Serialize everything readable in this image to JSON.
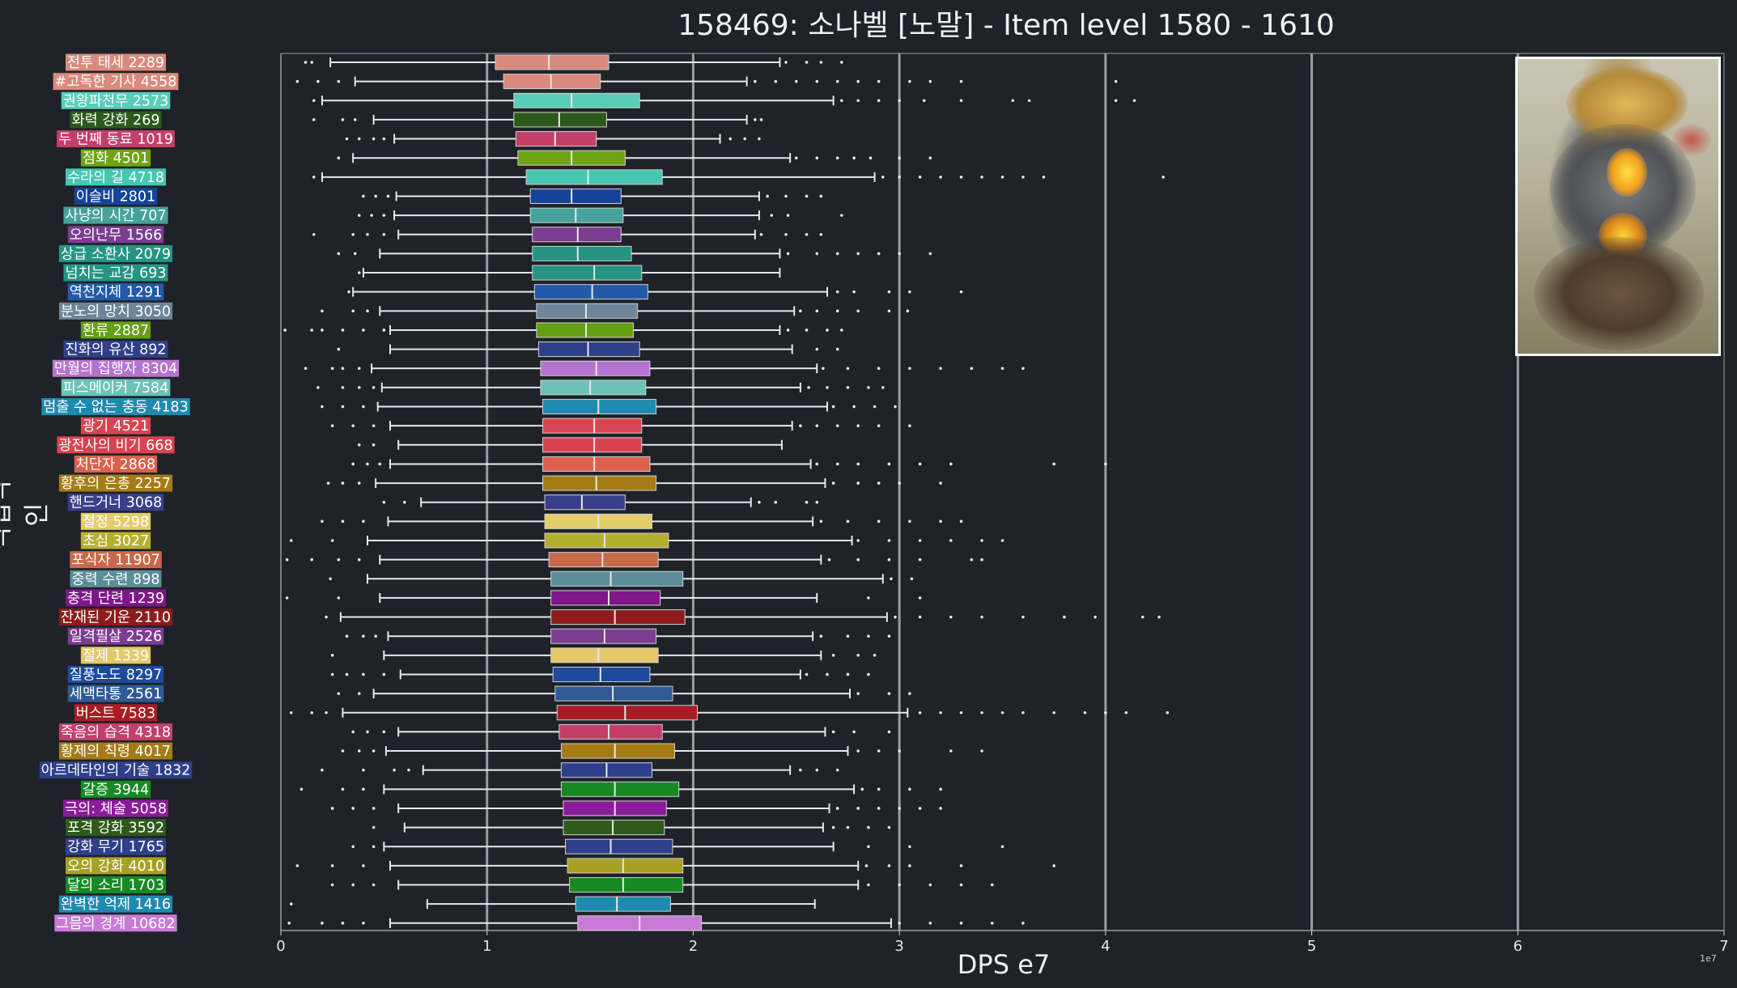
{
  "header": {
    "title": "158469: 소나벨 [노말] - Item level 1580 - 1610"
  },
  "chart_data": {
    "type": "box",
    "orientation": "horizontal",
    "title": "158469: 소나벨 [노말] - Item level 1580 - 1610",
    "xlabel": "DPS e7",
    "ylabel": "직업각인",
    "x_scale_label": "1e7",
    "xlim": [
      0,
      7
    ],
    "xticks": [
      "0",
      "1",
      "2",
      "3",
      "4",
      "5",
      "6",
      "7"
    ],
    "grid": "vertical lines at integer ticks",
    "items": [
      {
        "label": "전투 태세 2289",
        "color": "#d98a7c",
        "whislo": 0.24,
        "q1": 1.04,
        "med": 1.3,
        "q3": 1.59,
        "whishi": 2.42,
        "fliers": [
          0.12,
          0.15,
          2.45,
          2.55,
          2.62,
          2.72
        ]
      },
      {
        "label": "#고독한 기사 4558",
        "color": "#d98a7c",
        "whislo": 0.36,
        "q1": 1.08,
        "med": 1.31,
        "q3": 1.55,
        "whishi": 2.26,
        "fliers": [
          0.08,
          0.18,
          0.28,
          2.3,
          2.4,
          2.5,
          2.6,
          2.7,
          2.8,
          2.9,
          3.05,
          3.15,
          3.3,
          4.05
        ]
      },
      {
        "label": "권왕파천무 2573",
        "color": "#58cdb7",
        "whislo": 0.2,
        "q1": 1.13,
        "med": 1.41,
        "q3": 1.74,
        "whishi": 2.68,
        "fliers": [
          0.16,
          2.72,
          2.8,
          2.9,
          3.0,
          3.12,
          3.3,
          3.55,
          3.63,
          4.05,
          4.14
        ]
      },
      {
        "label": "화력 강화 269",
        "color": "#2c5a1c",
        "whislo": 0.45,
        "q1": 1.13,
        "med": 1.35,
        "q3": 1.58,
        "whishi": 2.26,
        "fliers": [
          0.16,
          0.3,
          0.36,
          2.3,
          2.33
        ]
      },
      {
        "label": "두 번째 동료 1019",
        "color": "#c33f6a",
        "whislo": 0.55,
        "q1": 1.14,
        "med": 1.33,
        "q3": 1.53,
        "whishi": 2.13,
        "fliers": [
          0.32,
          0.38,
          0.45,
          0.5,
          2.18,
          2.25,
          2.32
        ]
      },
      {
        "label": "점화 4501",
        "color": "#6fa414",
        "whislo": 0.35,
        "q1": 1.15,
        "med": 1.41,
        "q3": 1.67,
        "whishi": 2.47,
        "fliers": [
          0.28,
          2.5,
          2.6,
          2.7,
          2.78,
          2.86,
          3.0,
          3.15
        ]
      },
      {
        "label": "수라의 길 4718",
        "color": "#45c7b2",
        "whislo": 0.2,
        "q1": 1.19,
        "med": 1.49,
        "q3": 1.85,
        "whishi": 2.88,
        "fliers": [
          0.16,
          2.92,
          3.0,
          3.1,
          3.2,
          3.3,
          3.4,
          3.5,
          3.6,
          3.7,
          4.28
        ]
      },
      {
        "label": "이슬비 2801",
        "color": "#16439b",
        "whislo": 0.56,
        "q1": 1.21,
        "med": 1.41,
        "q3": 1.65,
        "whishi": 2.32,
        "fliers": [
          0.4,
          0.46,
          0.52,
          2.36,
          2.45,
          2.55,
          2.62
        ]
      },
      {
        "label": "사냥의 시간 707",
        "color": "#46a39b",
        "whislo": 0.55,
        "q1": 1.21,
        "med": 1.43,
        "q3": 1.66,
        "whishi": 2.32,
        "fliers": [
          0.38,
          0.44,
          0.5,
          2.38,
          2.46,
          2.72
        ]
      },
      {
        "label": "오의난무 1566",
        "color": "#7c3d91",
        "whislo": 0.57,
        "q1": 1.22,
        "med": 1.44,
        "q3": 1.65,
        "whishi": 2.3,
        "fliers": [
          0.16,
          0.35,
          0.42,
          0.5,
          2.33,
          2.45,
          2.55,
          2.62
        ]
      },
      {
        "label": "상급 소환사 2079",
        "color": "#269482",
        "whislo": 0.48,
        "q1": 1.22,
        "med": 1.44,
        "q3": 1.7,
        "whishi": 2.42,
        "fliers": [
          0.28,
          0.36,
          2.46,
          2.6,
          2.7,
          2.8,
          2.9,
          3.0,
          3.15
        ]
      },
      {
        "label": "넘치는 교감 693",
        "color": "#269482",
        "whislo": 0.4,
        "q1": 1.22,
        "med": 1.52,
        "q3": 1.75,
        "whishi": 2.42,
        "fliers": [
          0.38
        ]
      },
      {
        "label": "역천지체 1291",
        "color": "#235aa8",
        "whislo": 0.35,
        "q1": 1.23,
        "med": 1.51,
        "q3": 1.78,
        "whishi": 2.65,
        "fliers": [
          0.33,
          2.7,
          2.78,
          2.95,
          3.05,
          3.3
        ]
      },
      {
        "label": "분노의 망치 3050",
        "color": "#6d8499",
        "whislo": 0.48,
        "q1": 1.24,
        "med": 1.48,
        "q3": 1.73,
        "whishi": 2.49,
        "fliers": [
          0.2,
          0.35,
          0.42,
          2.52,
          2.6,
          2.7,
          2.8,
          2.95,
          3.04
        ]
      },
      {
        "label": "환류 2887",
        "color": "#62a014",
        "whislo": 0.53,
        "q1": 1.24,
        "med": 1.48,
        "q3": 1.71,
        "whishi": 2.42,
        "fliers": [
          0.02,
          0.15,
          0.2,
          0.3,
          0.4,
          0.5,
          2.46,
          2.55,
          2.65,
          2.72
        ]
      },
      {
        "label": "진화의 유산 892",
        "color": "#2f3f89",
        "whislo": 0.53,
        "q1": 1.25,
        "med": 1.49,
        "q3": 1.74,
        "whishi": 2.48,
        "fliers": [
          0.28,
          2.6,
          2.7
        ]
      },
      {
        "label": "만월의 집행자 8304",
        "color": "#b573cf",
        "whislo": 0.44,
        "q1": 1.26,
        "med": 1.53,
        "q3": 1.79,
        "whishi": 2.6,
        "fliers": [
          0.12,
          0.25,
          0.3,
          0.38,
          2.63,
          2.75,
          2.9,
          3.05,
          3.2,
          3.35,
          3.5,
          3.6
        ]
      },
      {
        "label": "피스메이커 7584",
        "color": "#6cc2b6",
        "whislo": 0.49,
        "q1": 1.26,
        "med": 1.5,
        "q3": 1.77,
        "whishi": 2.52,
        "fliers": [
          0.18,
          0.3,
          0.38,
          0.45,
          2.56,
          2.65,
          2.75,
          2.85,
          2.92
        ]
      },
      {
        "label": "멈출 수 없는 충동 4183",
        "color": "#1f8ab0",
        "whislo": 0.47,
        "q1": 1.27,
        "med": 1.54,
        "q3": 1.82,
        "whishi": 2.65,
        "fliers": [
          0.2,
          0.3,
          0.4,
          2.68,
          2.78,
          2.88,
          2.98
        ]
      },
      {
        "label": "광기 4521",
        "color": "#d94452",
        "whislo": 0.53,
        "q1": 1.27,
        "med": 1.52,
        "q3": 1.75,
        "whishi": 2.48,
        "fliers": [
          0.25,
          0.35,
          0.45,
          2.52,
          2.6,
          2.7,
          2.8,
          2.9,
          3.05
        ]
      },
      {
        "label": "광전사의 비기 668",
        "color": "#d9434f",
        "whislo": 0.57,
        "q1": 1.27,
        "med": 1.52,
        "q3": 1.75,
        "whishi": 2.43,
        "fliers": [
          0.38,
          0.45
        ]
      },
      {
        "label": "처단자 2868",
        "color": "#d9614d",
        "whislo": 0.53,
        "q1": 1.27,
        "med": 1.52,
        "q3": 1.79,
        "whishi": 2.57,
        "fliers": [
          0.35,
          0.42,
          0.48,
          2.6,
          2.7,
          2.8,
          2.95,
          3.1,
          3.25,
          3.75,
          4.0
        ]
      },
      {
        "label": "황후의 은총 2257",
        "color": "#a57b15",
        "whislo": 0.46,
        "q1": 1.27,
        "med": 1.53,
        "q3": 1.82,
        "whishi": 2.64,
        "fliers": [
          0.23,
          0.3,
          0.38,
          2.68,
          2.8,
          2.9,
          3.0,
          3.2
        ]
      },
      {
        "label": "핸드거너 3068",
        "color": "#3a3f8c",
        "whislo": 0.68,
        "q1": 1.28,
        "med": 1.46,
        "q3": 1.67,
        "whishi": 2.28,
        "fliers": [
          0.5,
          0.6,
          2.32,
          2.4,
          2.55,
          2.6
        ]
      },
      {
        "label": "절정 5298",
        "color": "#e3cd6b",
        "whislo": 0.52,
        "q1": 1.28,
        "med": 1.54,
        "q3": 1.8,
        "whishi": 2.58,
        "fliers": [
          0.2,
          0.3,
          0.4,
          2.62,
          2.75,
          2.9,
          3.05,
          3.2,
          3.3
        ]
      },
      {
        "label": "초심 3027",
        "color": "#b5b030",
        "whislo": 0.42,
        "q1": 1.28,
        "med": 1.57,
        "q3": 1.88,
        "whishi": 2.77,
        "fliers": [
          0.05,
          0.25,
          2.8,
          2.95,
          3.1,
          3.25,
          3.4,
          3.5
        ]
      },
      {
        "label": "포식자 11907",
        "color": "#c9694a",
        "whislo": 0.48,
        "q1": 1.3,
        "med": 1.56,
        "q3": 1.83,
        "whishi": 2.62,
        "fliers": [
          0.03,
          0.15,
          0.28,
          0.38,
          2.66,
          2.8,
          2.95,
          3.1,
          3.35,
          3.4
        ]
      },
      {
        "label": "중력 수련 898",
        "color": "#5c8d98",
        "whislo": 0.42,
        "q1": 1.31,
        "med": 1.6,
        "q3": 1.95,
        "whishi": 2.92,
        "fliers": [
          0.24,
          2.96,
          3.06
        ]
      },
      {
        "label": "충격 단련 1239",
        "color": "#80168a",
        "whislo": 0.48,
        "q1": 1.31,
        "med": 1.59,
        "q3": 1.84,
        "whishi": 2.6,
        "fliers": [
          0.03,
          0.28,
          2.85,
          3.1
        ]
      },
      {
        "label": "잔재된 기운 2110",
        "color": "#8e1c1c",
        "whislo": 0.29,
        "q1": 1.31,
        "med": 1.62,
        "q3": 1.96,
        "whishi": 2.94,
        "fliers": [
          0.22,
          2.98,
          3.1,
          3.25,
          3.4,
          3.6,
          3.8,
          3.95,
          4.18,
          4.26
        ]
      },
      {
        "label": "일격필살 2526",
        "color": "#7c3d91",
        "whislo": 0.52,
        "q1": 1.31,
        "med": 1.57,
        "q3": 1.82,
        "whishi": 2.58,
        "fliers": [
          0.32,
          0.4,
          0.46,
          2.62,
          2.75,
          2.85,
          2.95
        ]
      },
      {
        "label": "절제 1339",
        "color": "#e3c96a",
        "whislo": 0.5,
        "q1": 1.31,
        "med": 1.54,
        "q3": 1.83,
        "whishi": 2.62,
        "fliers": [
          0.25,
          2.68,
          2.8,
          2.88
        ]
      },
      {
        "label": "질풍노도 8297",
        "color": "#1d4a9b",
        "whislo": 0.58,
        "q1": 1.32,
        "med": 1.55,
        "q3": 1.79,
        "whishi": 2.52,
        "fliers": [
          0.25,
          0.32,
          0.4,
          0.5,
          2.55,
          2.65,
          2.75,
          2.85
        ]
      },
      {
        "label": "세맥타통 2561",
        "color": "#2f5a96",
        "whislo": 0.45,
        "q1": 1.33,
        "med": 1.61,
        "q3": 1.9,
        "whishi": 2.76,
        "fliers": [
          0.28,
          0.38,
          2.8,
          2.95,
          3.05
        ]
      },
      {
        "label": "버스트 7583",
        "color": "#a81d24",
        "whislo": 0.3,
        "q1": 1.34,
        "med": 1.67,
        "q3": 2.02,
        "whishi": 3.04,
        "fliers": [
          0.05,
          0.15,
          0.22,
          3.1,
          3.2,
          3.3,
          3.4,
          3.5,
          3.6,
          3.75,
          3.9,
          4.0,
          4.1,
          4.3
        ]
      },
      {
        "label": "죽음의 습격 4318",
        "color": "#c33f6a",
        "whislo": 0.57,
        "q1": 1.35,
        "med": 1.59,
        "q3": 1.85,
        "whishi": 2.64,
        "fliers": [
          0.35,
          0.42,
          0.5,
          2.68,
          2.78,
          2.95
        ]
      },
      {
        "label": "황제의 칙령 4017",
        "color": "#a57b15",
        "whislo": 0.51,
        "q1": 1.36,
        "med": 1.62,
        "q3": 1.91,
        "whishi": 2.75,
        "fliers": [
          0.3,
          0.38,
          0.45,
          2.8,
          2.9,
          3.0,
          3.25,
          3.4
        ]
      },
      {
        "label": "아르데타인의 기술 1832",
        "color": "#2f3f89",
        "whislo": 0.69,
        "q1": 1.36,
        "med": 1.58,
        "q3": 1.8,
        "whishi": 2.47,
        "fliers": [
          0.2,
          0.4,
          0.55,
          0.62,
          2.52,
          2.6,
          2.7
        ]
      },
      {
        "label": "갈증 3944",
        "color": "#178a23",
        "whislo": 0.5,
        "q1": 1.36,
        "med": 1.62,
        "q3": 1.93,
        "whishi": 2.78,
        "fliers": [
          0.1,
          0.3,
          0.4,
          2.82,
          2.9,
          3.05,
          3.2
        ]
      },
      {
        "label": "극의: 체술 5058",
        "color": "#8a1c9a",
        "whislo": 0.57,
        "q1": 1.37,
        "med": 1.62,
        "q3": 1.87,
        "whishi": 2.66,
        "fliers": [
          0.25,
          0.35,
          0.45,
          2.7,
          2.8,
          2.9,
          3.0,
          3.1,
          3.2
        ]
      },
      {
        "label": "포격 강화 3592",
        "color": "#2e5a1c",
        "whislo": 0.6,
        "q1": 1.37,
        "med": 1.61,
        "q3": 1.86,
        "whishi": 2.63,
        "fliers": [
          0.45,
          2.68,
          2.75,
          2.85,
          2.95
        ]
      },
      {
        "label": "강화 무기 1765",
        "color": "#2f3f89",
        "whislo": 0.5,
        "q1": 1.38,
        "med": 1.6,
        "q3": 1.9,
        "whishi": 2.68,
        "fliers": [
          0.35,
          0.45,
          2.85,
          3.05,
          3.5
        ]
      },
      {
        "label": "오의 강화 4010",
        "color": "#a8a022",
        "whislo": 0.53,
        "q1": 1.39,
        "med": 1.66,
        "q3": 1.95,
        "whishi": 2.8,
        "fliers": [
          0.08,
          0.25,
          0.4,
          2.84,
          2.95,
          3.05,
          3.3,
          3.75
        ]
      },
      {
        "label": "달의 소리 1703",
        "color": "#178a23",
        "whislo": 0.57,
        "q1": 1.4,
        "med": 1.66,
        "q3": 1.95,
        "whishi": 2.8,
        "fliers": [
          0.25,
          0.35,
          0.45,
          2.85,
          3.0,
          3.15,
          3.3,
          3.45
        ]
      },
      {
        "label": "완벽한 억제 1416",
        "color": "#1f8ab0",
        "whislo": 0.71,
        "q1": 1.43,
        "med": 1.63,
        "q3": 1.89,
        "whishi": 2.59,
        "fliers": [
          0.05
        ]
      },
      {
        "label": "그믐의 경계 10682",
        "color": "#c77bd6",
        "whislo": 0.53,
        "q1": 1.44,
        "med": 1.74,
        "q3": 2.04,
        "whishi": 2.96,
        "fliers": [
          0.04,
          0.2,
          0.3,
          0.4,
          3.0,
          3.15,
          3.3,
          3.45,
          3.6
        ]
      }
    ]
  }
}
